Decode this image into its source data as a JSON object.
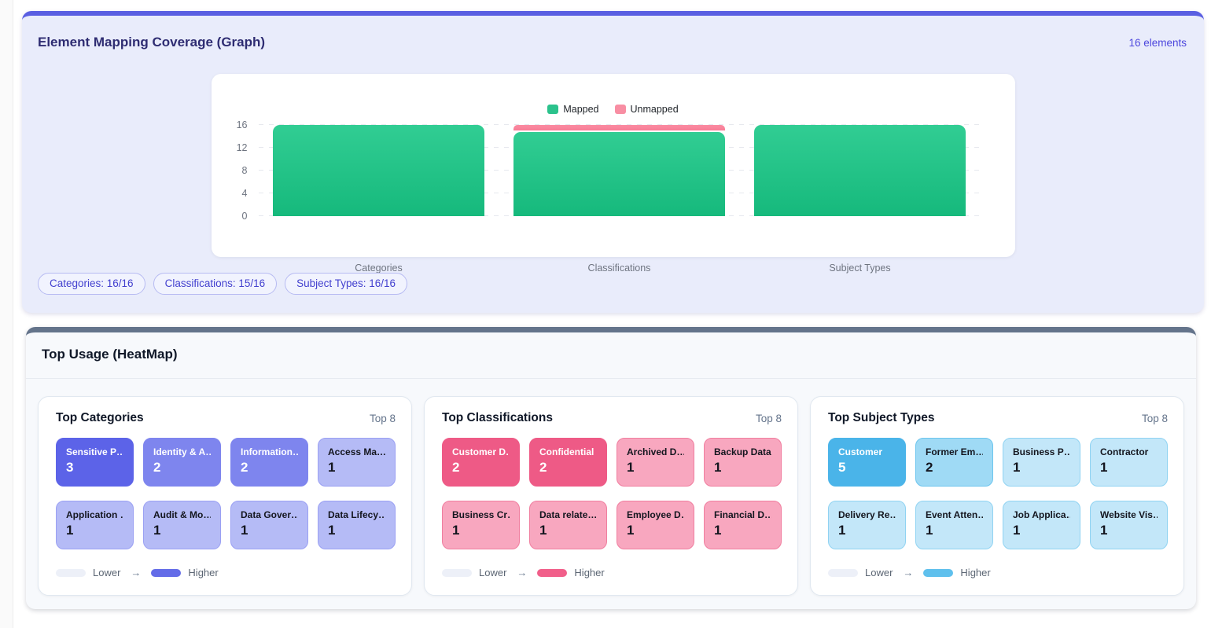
{
  "coverage_panel": {
    "title": "Element Mapping Coverage (Graph)",
    "elements_badge": "16 elements",
    "summary_pills": [
      "Categories: 16/16",
      "Classifications: 15/16",
      "Subject Types: 16/16"
    ]
  },
  "chart_data": {
    "type": "bar",
    "stacked": true,
    "categories": [
      "Categories",
      "Classifications",
      "Subject Types"
    ],
    "series": [
      {
        "name": "Mapped",
        "color": "#2bc28c",
        "values": [
          16,
          15,
          16
        ]
      },
      {
        "name": "Unmapped",
        "color": "#f88ea3",
        "values": [
          0,
          1,
          0
        ]
      }
    ],
    "ylim": [
      0,
      16
    ],
    "yticks": [
      0,
      4,
      8,
      12,
      16
    ],
    "legend_position": "top",
    "grid": true
  },
  "heatmap_panel": {
    "title": "Top Usage (HeatMap)",
    "cards": [
      {
        "title": "Top Categories",
        "badge": "Top 8",
        "palette": {
          "high": {
            "bg": "#5c63e8",
            "border": "#5c63e8",
            "text": "#ffffff"
          },
          "mid": {
            "bg": "#7e85ee",
            "border": "#7e85ee",
            "text": "#ffffff"
          },
          "low": {
            "bg": "#b5bbf6",
            "border": "#9aa0f3",
            "text": "#14161f"
          }
        },
        "legend": {
          "lower": "Lower",
          "arrow": "→",
          "higher": "Higher",
          "lower_color": "#edf0f8",
          "higher_color": "#646ce8"
        },
        "tiles": [
          {
            "label": "Sensitive P…",
            "value": 3,
            "level": "high"
          },
          {
            "label": "Identity & A…",
            "value": 2,
            "level": "mid"
          },
          {
            "label": "Information…",
            "value": 2,
            "level": "mid"
          },
          {
            "label": "Access Ma…",
            "value": 1,
            "level": "low"
          },
          {
            "label": "Application …",
            "value": 1,
            "level": "low"
          },
          {
            "label": "Audit & Mo…",
            "value": 1,
            "level": "low"
          },
          {
            "label": "Data Gover…",
            "value": 1,
            "level": "low"
          },
          {
            "label": "Data Lifecy…",
            "value": 1,
            "level": "low"
          }
        ]
      },
      {
        "title": "Top Classifications",
        "badge": "Top 8",
        "palette": {
          "high": {
            "bg": "#ee5a86",
            "border": "#ee5a86",
            "text": "#ffffff"
          },
          "low": {
            "bg": "#f8a7bf",
            "border": "#f07e9f",
            "text": "#14161f"
          }
        },
        "legend": {
          "lower": "Lower",
          "arrow": "→",
          "higher": "Higher",
          "lower_color": "#edf0f8",
          "higher_color": "#f15f8a"
        },
        "tiles": [
          {
            "label": "Customer D…",
            "value": 2,
            "level": "high"
          },
          {
            "label": "Confidential",
            "value": 2,
            "level": "high"
          },
          {
            "label": "Archived D…",
            "value": 1,
            "level": "low"
          },
          {
            "label": "Backup Data",
            "value": 1,
            "level": "low"
          },
          {
            "label": "Business Cr…",
            "value": 1,
            "level": "low"
          },
          {
            "label": "Data relate…",
            "value": 1,
            "level": "low"
          },
          {
            "label": "Employee D…",
            "value": 1,
            "level": "low"
          },
          {
            "label": "Financial D…",
            "value": 1,
            "level": "low"
          }
        ]
      },
      {
        "title": "Top Subject Types",
        "badge": "Top 8",
        "palette": {
          "high": {
            "bg": "#4ab4e9",
            "border": "#4ab4e9",
            "text": "#ffffff"
          },
          "mid": {
            "bg": "#9fdaf5",
            "border": "#6cc5ee",
            "text": "#14161f"
          },
          "low": {
            "bg": "#c3e7f9",
            "border": "#90d3f2",
            "text": "#14161f"
          }
        },
        "legend": {
          "lower": "Lower",
          "arrow": "→",
          "higher": "Higher",
          "lower_color": "#edf0f8",
          "higher_color": "#5fc0ed"
        },
        "tiles": [
          {
            "label": "Customer",
            "value": 5,
            "level": "high"
          },
          {
            "label": "Former Em…",
            "value": 2,
            "level": "mid"
          },
          {
            "label": "Business P…",
            "value": 1,
            "level": "low"
          },
          {
            "label": "Contractor",
            "value": 1,
            "level": "low"
          },
          {
            "label": "Delivery Re…",
            "value": 1,
            "level": "low"
          },
          {
            "label": "Event Atten…",
            "value": 1,
            "level": "low"
          },
          {
            "label": "Job Applica…",
            "value": 1,
            "level": "low"
          },
          {
            "label": "Website Vis…",
            "value": 1,
            "level": "low"
          }
        ]
      }
    ]
  }
}
